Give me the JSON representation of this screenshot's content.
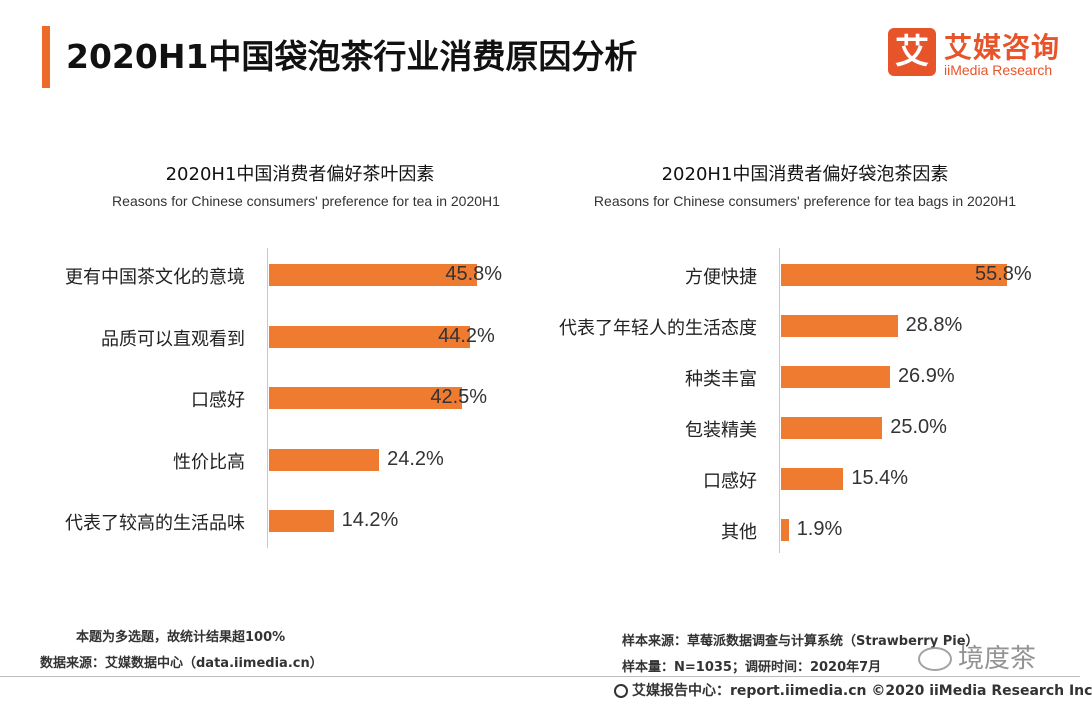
{
  "header": {
    "title": "2020H1中国袋泡茶行业消费原因分析",
    "brand_mark": "艾",
    "brand_cn": "艾媒咨询",
    "brand_en": "iiMedia Research"
  },
  "chart_data": [
    {
      "type": "bar",
      "orientation": "horizontal",
      "title": "2020H1中国消费者偏好茶叶因素",
      "subtitle": "Reasons for Chinese consumers' preference for tea in 2020H1",
      "categories": [
        "更有中国茶文化的意境",
        "品质可以直观看到",
        "口感好",
        "性价比高",
        "代表了较高的生活品味"
      ],
      "values": [
        45.8,
        44.2,
        42.5,
        24.2,
        14.2
      ],
      "value_labels": [
        "45.8%",
        "44.2%",
        "42.5%",
        "24.2%",
        "14.2%"
      ],
      "unit": "%",
      "bar_color": "#ee7b30"
    },
    {
      "type": "bar",
      "orientation": "horizontal",
      "title": "2020H1中国消费者偏好袋泡茶因素",
      "subtitle": "Reasons for Chinese consumers' preference for tea bags in 2020H1",
      "categories": [
        "方便快捷",
        "代表了年轻人的生活态度",
        "种类丰富",
        "包装精美",
        "口感好",
        "其他"
      ],
      "values": [
        55.8,
        28.8,
        26.9,
        25.0,
        15.4,
        1.9
      ],
      "value_labels": [
        "55.8%",
        "28.8%",
        "26.9%",
        "25.0%",
        "15.4%",
        "1.9%"
      ],
      "unit": "%",
      "bar_color": "#ee7b30"
    }
  ],
  "notes": {
    "multi_select": "本题为多选题，故统计结果超100%",
    "data_source": "数据来源：艾媒数据中心（data.iimedia.cn）",
    "sample_source": "样本来源：草莓派数据调查与计算系统（Strawberry Pie）",
    "sample_size": "样本量：N=1035；调研时间：2020年7月"
  },
  "footer": {
    "text": "艾媒报告中心：report.iimedia.cn  ©2020  iiMedia Research  Inc"
  },
  "watermark": {
    "text": "境度茶"
  }
}
